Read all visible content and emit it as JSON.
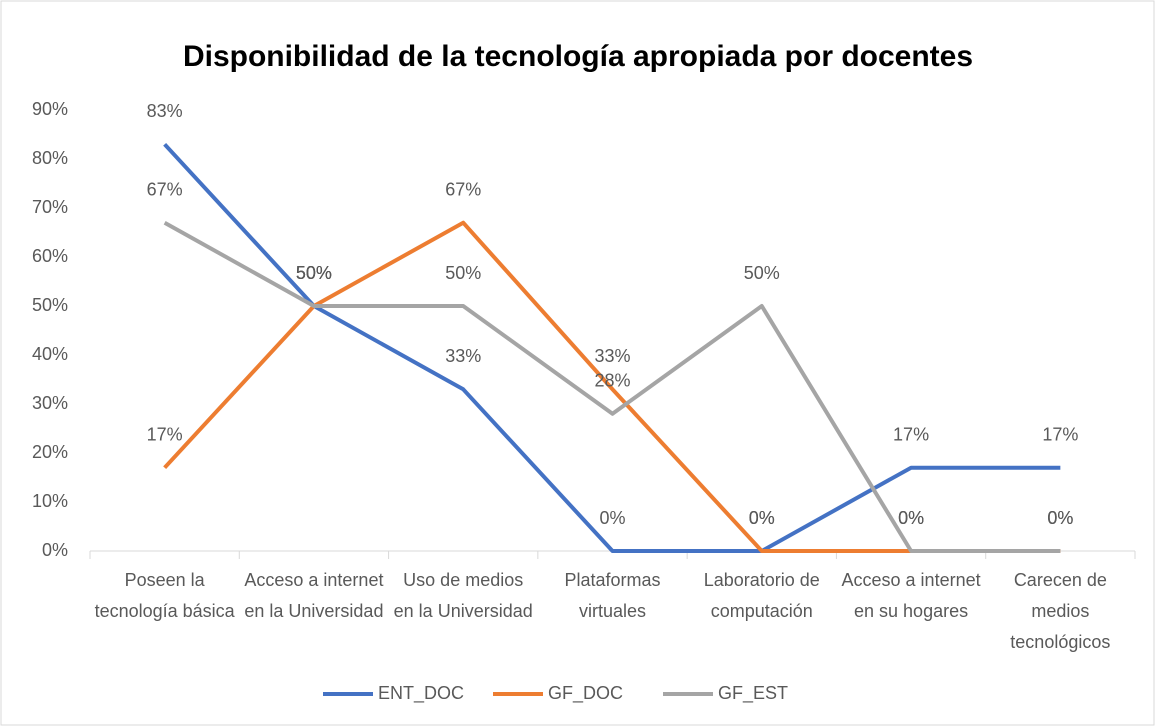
{
  "chart_data": {
    "type": "line",
    "title": "Disponibilidad de la tecnología apropiada por docentes",
    "categories": [
      "Poseen la tecnología básica",
      "Acceso a internet en la Universidad",
      "Uso de medios en la Universidad",
      "Plataformas virtuales",
      "Laboratorio de computación",
      "Acceso a internet en su hogares",
      "Carecen de medios tecnológicos"
    ],
    "series": [
      {
        "name": "ENT_DOC",
        "color": "#4472c4",
        "values": [
          83,
          50,
          33,
          0,
          0,
          17,
          17
        ],
        "value_labels": [
          "83%",
          "50%",
          "33%",
          "0%",
          "0%",
          "17%",
          "17%"
        ]
      },
      {
        "name": "GF_DOC",
        "color": "#ed7d31",
        "values": [
          17,
          50,
          67,
          33,
          0,
          0,
          0
        ],
        "value_labels": [
          "17%",
          "50%",
          "67%",
          "33%",
          "0%",
          "0%",
          "0%"
        ]
      },
      {
        "name": "GF_EST",
        "color": "#a5a5a5",
        "values": [
          67,
          50,
          50,
          28,
          50,
          0,
          0
        ],
        "value_labels": [
          "67%",
          "50%",
          "50%",
          "28%",
          "50%",
          "0%",
          "0%"
        ]
      }
    ],
    "ylim": [
      0,
      90
    ],
    "yticks": [
      {
        "value": 0,
        "label": "0%"
      },
      {
        "value": 10,
        "label": "10%"
      },
      {
        "value": 20,
        "label": "20%"
      },
      {
        "value": 30,
        "label": "30%"
      },
      {
        "value": 40,
        "label": "40%"
      },
      {
        "value": 50,
        "label": "50%"
      },
      {
        "value": 60,
        "label": "60%"
      },
      {
        "value": 70,
        "label": "70%"
      },
      {
        "value": 80,
        "label": "80%"
      },
      {
        "value": 90,
        "label": "90%"
      }
    ],
    "grid": false,
    "legend": "bottom"
  }
}
